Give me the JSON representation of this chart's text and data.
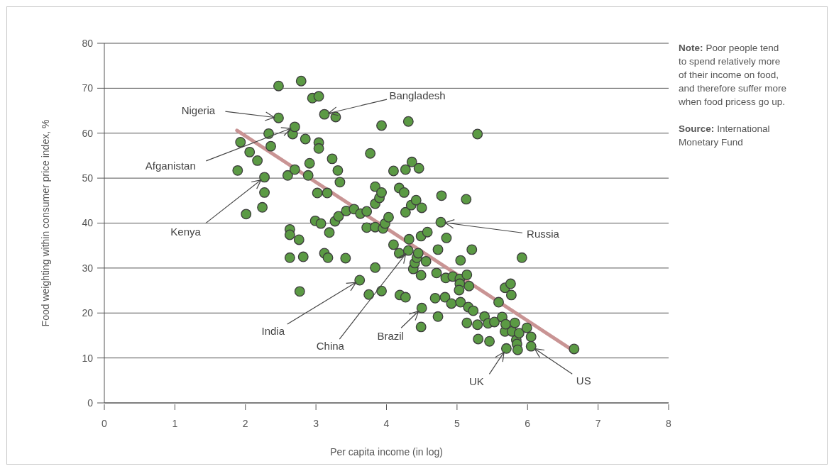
{
  "chart_data": {
    "type": "scatter",
    "xlabel": "Per capita income (in log)",
    "ylabel": "Food weighting within consumer price index, %",
    "xlim": [
      0,
      8
    ],
    "xticks": [
      0,
      1,
      2,
      3,
      4,
      5,
      6,
      7,
      8
    ],
    "ylim": [
      0,
      80
    ],
    "yticks": [
      0,
      10,
      20,
      30,
      40,
      50,
      60,
      70,
      80
    ],
    "grid": "y",
    "series": [
      {
        "type": "scatter",
        "color": "#5b9a44",
        "marker": "circle",
        "x": [
          1.89,
          1.93,
          2.01,
          2.06,
          2.17,
          2.24,
          2.27,
          2.27,
          2.33,
          2.36,
          2.47,
          2.47,
          2.6,
          2.63,
          2.63,
          2.63,
          2.67,
          2.7,
          2.7,
          2.76,
          2.77,
          2.79,
          2.82,
          2.85,
          2.89,
          2.91,
          2.95,
          3.04,
          3.02,
          2.99,
          3.04,
          3.04,
          3.07,
          3.12,
          3.12,
          3.16,
          3.17,
          3.19,
          3.23,
          3.27,
          3.28,
          3.31,
          3.32,
          3.34,
          3.42,
          3.43,
          3.54,
          3.62,
          3.63,
          3.72,
          3.72,
          3.75,
          3.77,
          3.84,
          3.84,
          3.84,
          3.84,
          3.9,
          3.93,
          3.93,
          3.93,
          3.95,
          3.98,
          4.03,
          4.1,
          4.1,
          4.18,
          4.18,
          4.19,
          4.25,
          4.27,
          4.27,
          4.27,
          4.31,
          4.31,
          4.32,
          4.35,
          4.36,
          4.38,
          4.4,
          4.42,
          4.43,
          4.45,
          4.46,
          4.49,
          4.49,
          4.5,
          4.5,
          4.49,
          4.56,
          4.58,
          4.69,
          4.71,
          4.73,
          4.73,
          4.77,
          4.78,
          4.83,
          4.84,
          4.85,
          4.92,
          4.94,
          5.04,
          5.04,
          5.03,
          5.05,
          5.05,
          5.13,
          5.14,
          5.14,
          5.16,
          5.17,
          5.21,
          5.23,
          5.29,
          5.29,
          5.3,
          5.39,
          5.44,
          5.46,
          5.53,
          5.59,
          5.64,
          5.68,
          5.68,
          5.69,
          5.7,
          5.76,
          5.77,
          5.78,
          5.82,
          5.84,
          5.85,
          5.86,
          5.88,
          5.92,
          5.99,
          6.05,
          6.05,
          6.66
        ],
        "values": [
          51.7,
          58.0,
          42.0,
          55.8,
          53.9,
          43.5,
          50.2,
          46.8,
          59.9,
          57.1,
          70.5,
          63.4,
          50.6,
          38.6,
          37.4,
          32.3,
          59.8,
          61.4,
          51.9,
          36.3,
          24.8,
          71.6,
          32.5,
          58.7,
          50.6,
          53.3,
          67.8,
          68.2,
          46.7,
          40.5,
          57.9,
          56.6,
          39.9,
          64.2,
          33.3,
          46.7,
          32.3,
          37.9,
          54.3,
          40.4,
          63.6,
          51.7,
          41.5,
          49.1,
          32.2,
          42.7,
          43.1,
          27.3,
          42.1,
          42.6,
          39.0,
          24.1,
          55.5,
          48.1,
          44.3,
          39.1,
          30.1,
          45.6,
          46.8,
          61.7,
          24.9,
          38.8,
          39.9,
          41.3,
          51.6,
          35.2,
          47.8,
          33.3,
          24.0,
          46.8,
          51.9,
          42.4,
          23.5,
          62.6,
          33.9,
          36.4,
          44.0,
          53.6,
          29.8,
          31.1,
          45.1,
          32.3,
          33.3,
          52.2,
          37.1,
          28.4,
          43.4,
          21.1,
          16.9,
          31.5,
          38.0,
          23.3,
          28.9,
          34.1,
          19.2,
          40.2,
          46.1,
          23.5,
          27.8,
          36.7,
          22.1,
          28.1,
          27.6,
          26.5,
          25.1,
          22.4,
          31.7,
          45.3,
          28.5,
          17.8,
          21.3,
          26.0,
          34.1,
          20.5,
          59.8,
          17.4,
          14.2,
          19.2,
          17.7,
          13.7,
          18.0,
          22.4,
          19.1,
          25.6,
          15.9,
          17.5,
          12.1,
          26.5,
          24.0,
          15.9,
          17.8,
          14.0,
          13.1,
          11.8,
          15.5,
          32.3,
          16.7,
          14.7,
          12.6,
          12.0
        ]
      },
      {
        "type": "line",
        "color": "#c99494",
        "marker": "none",
        "line_style": "solid",
        "x": [
          1.88,
          6.66
        ],
        "values": [
          60.6,
          11.5
        ]
      }
    ],
    "annotations": [
      {
        "text": "Nigeria",
        "x": 2.47,
        "y": 63.4
      },
      {
        "text": "Bangladesh",
        "x": 3.12,
        "y": 64.2
      },
      {
        "text": "Afganistan",
        "x": 2.7,
        "y": 61.4
      },
      {
        "text": "Kenya",
        "x": 2.27,
        "y": 50.2
      },
      {
        "text": "India",
        "x": 3.62,
        "y": 27.3
      },
      {
        "text": "China",
        "x": 4.31,
        "y": 33.9
      },
      {
        "text": "Brazil",
        "x": 4.5,
        "y": 21.1
      },
      {
        "text": "Russia",
        "x": 4.77,
        "y": 40.2
      },
      {
        "text": "UK",
        "x": 5.7,
        "y": 12.1
      },
      {
        "text": "US",
        "x": 6.05,
        "y": 12.6
      },
      "Note: Poor people tend to spend relatively more of their income on food, and therefore suffer more when food pricess go up.",
      "Source: International Monetary Fund"
    ]
  }
}
